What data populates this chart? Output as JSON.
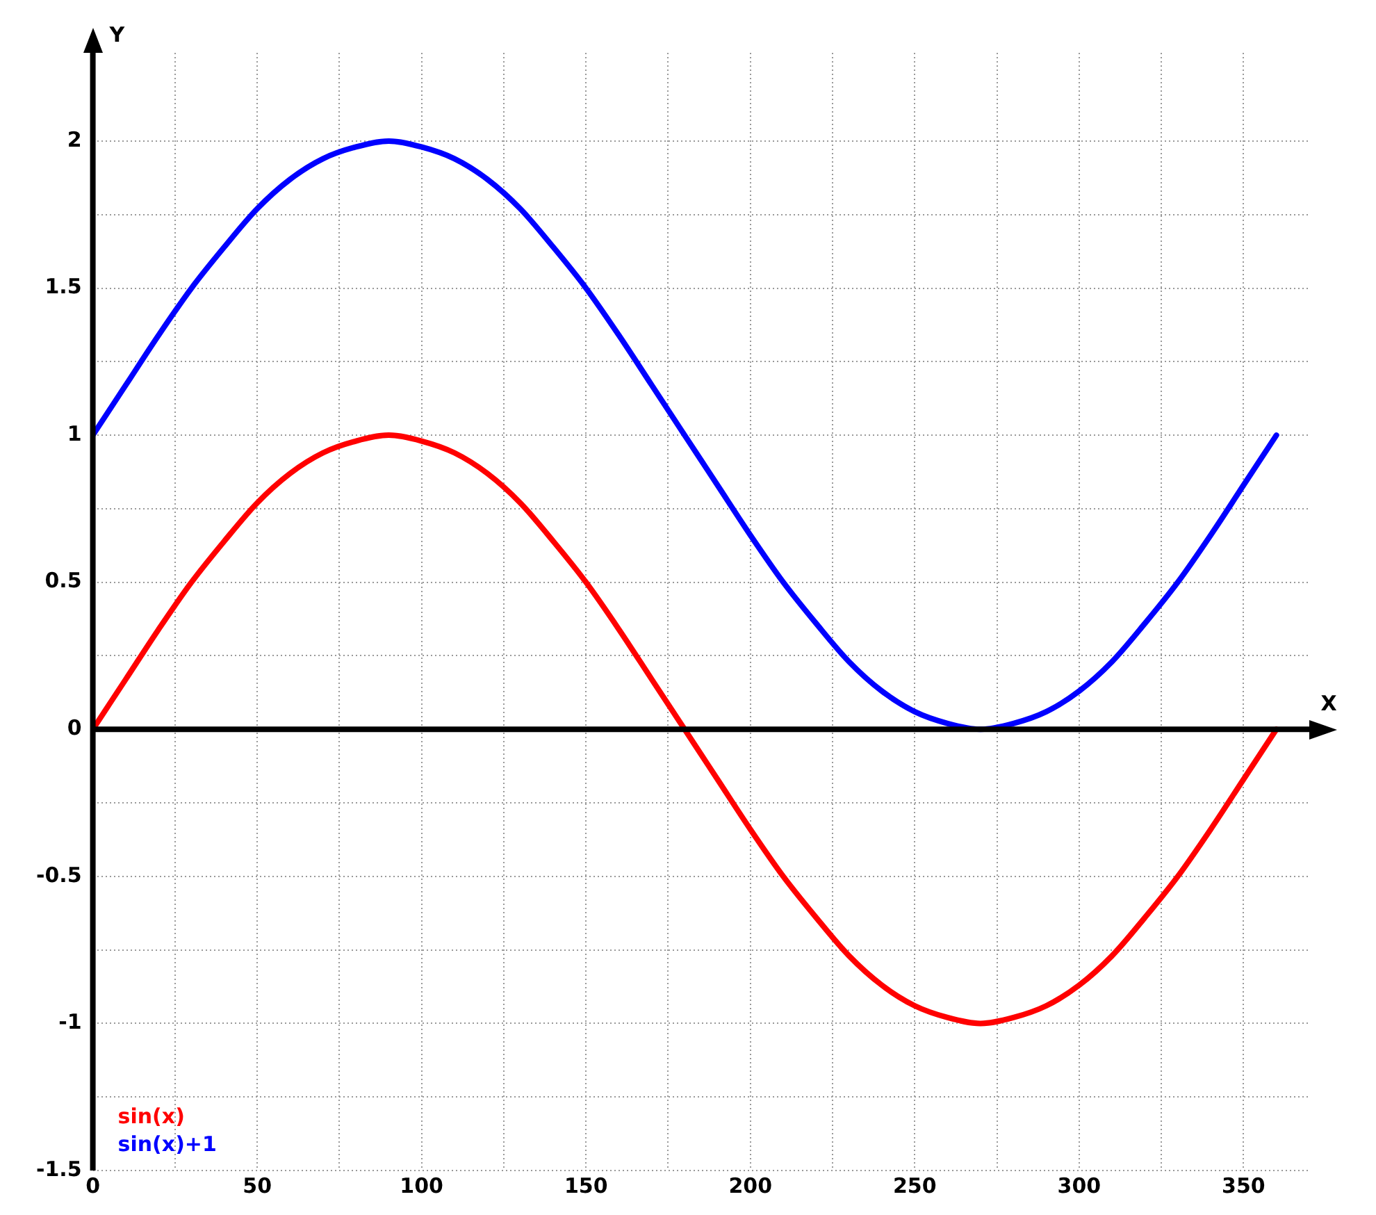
{
  "chart_data": {
    "type": "line",
    "xlabel": "X",
    "ylabel": "Y",
    "x": [
      0,
      10,
      20,
      30,
      40,
      50,
      60,
      70,
      80,
      90,
      100,
      110,
      120,
      130,
      140,
      150,
      160,
      170,
      180,
      190,
      200,
      210,
      220,
      230,
      240,
      250,
      260,
      270,
      280,
      290,
      300,
      310,
      320,
      330,
      340,
      350,
      360
    ],
    "series": [
      {
        "name": "sin(x)",
        "color": "#ff0000",
        "values": [
          0,
          0.17,
          0.34,
          0.5,
          0.64,
          0.77,
          0.87,
          0.94,
          0.98,
          1,
          0.98,
          0.94,
          0.87,
          0.77,
          0.64,
          0.5,
          0.34,
          0.17,
          0,
          -0.17,
          -0.34,
          -0.5,
          -0.64,
          -0.77,
          -0.87,
          -0.94,
          -0.98,
          -1,
          -0.98,
          -0.94,
          -0.87,
          -0.77,
          -0.64,
          -0.5,
          -0.34,
          -0.17,
          0
        ]
      },
      {
        "name": "sin(x)+1",
        "color": "#0000ff",
        "values": [
          1,
          1.17,
          1.34,
          1.5,
          1.64,
          1.77,
          1.87,
          1.94,
          1.98,
          2,
          1.98,
          1.94,
          1.87,
          1.77,
          1.64,
          1.5,
          1.34,
          1.17,
          1,
          0.83,
          0.66,
          0.5,
          0.36,
          0.23,
          0.13,
          0.06,
          0.02,
          0,
          0.02,
          0.06,
          0.13,
          0.23,
          0.36,
          0.5,
          0.66,
          0.83,
          1
        ]
      }
    ],
    "xlim": [
      0,
      370
    ],
    "xticks": [
      0,
      {
        "value": 25,
        "label": null
      },
      50,
      {
        "value": 75,
        "label": null
      },
      100,
      {
        "value": 125,
        "label": null
      },
      150,
      {
        "value": 175,
        "label": null
      },
      200,
      {
        "value": 225,
        "label": null
      },
      250,
      {
        "value": 275,
        "label": null
      },
      300,
      {
        "value": 325,
        "label": null
      },
      350
    ],
    "ylim": [
      -1.5,
      2.3
    ],
    "yticks": [
      -1.5,
      {
        "value": -1.25,
        "label": null
      },
      -1,
      {
        "value": -0.75,
        "label": null
      },
      -0.5,
      {
        "value": -0.25,
        "label": null
      },
      0,
      {
        "value": 0.25,
        "label": null
      },
      0.5,
      {
        "value": 0.75,
        "label": null
      },
      1,
      {
        "value": 1.25,
        "label": null
      },
      1.5,
      {
        "value": 1.75,
        "label": null
      },
      2
    ],
    "ref_lines": [
      {
        "axis": "y",
        "value": 0,
        "color": "#000000"
      }
    ],
    "grid": true,
    "legend": "bottom left",
    "marker": "none",
    "line_style": "solid"
  }
}
